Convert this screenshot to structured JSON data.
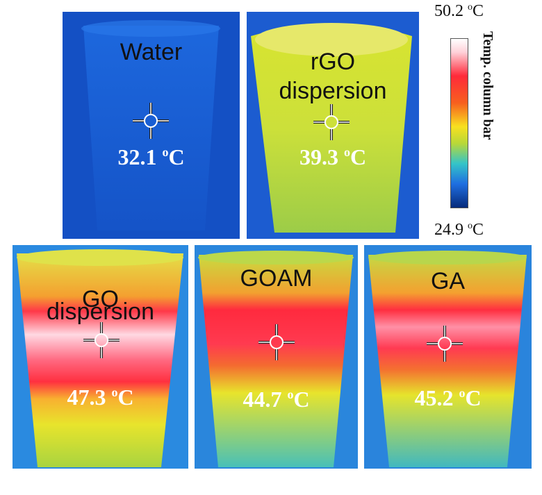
{
  "panels": [
    {
      "label": "Water",
      "temp_value": "32.1",
      "temp_unit_o": "o",
      "temp_unit_c": "C"
    },
    {
      "label_line1": "rGO",
      "label_line2": "dispersion",
      "temp_value": "39.3",
      "temp_unit_o": "o",
      "temp_unit_c": "C"
    },
    {
      "label_line1": "GO",
      "label_line2": "dispersion",
      "temp_value": "47.3",
      "temp_unit_o": "o",
      "temp_unit_c": "C"
    },
    {
      "label": "GOAM",
      "temp_value": "44.7",
      "temp_unit_o": "o",
      "temp_unit_c": "C"
    },
    {
      "label": "GA",
      "temp_value": "45.2",
      "temp_unit_o": "o",
      "temp_unit_c": "C"
    }
  ],
  "scale": {
    "max_value": "50.2",
    "min_value": "24.9",
    "unit_o": "o",
    "unit_c": "C",
    "title": "Temp. column bar"
  },
  "colors": {
    "cold": "#1b5fd8",
    "warm": "#e6e62a",
    "hot": "#ff2e46",
    "hottest": "#ffe8ee"
  }
}
